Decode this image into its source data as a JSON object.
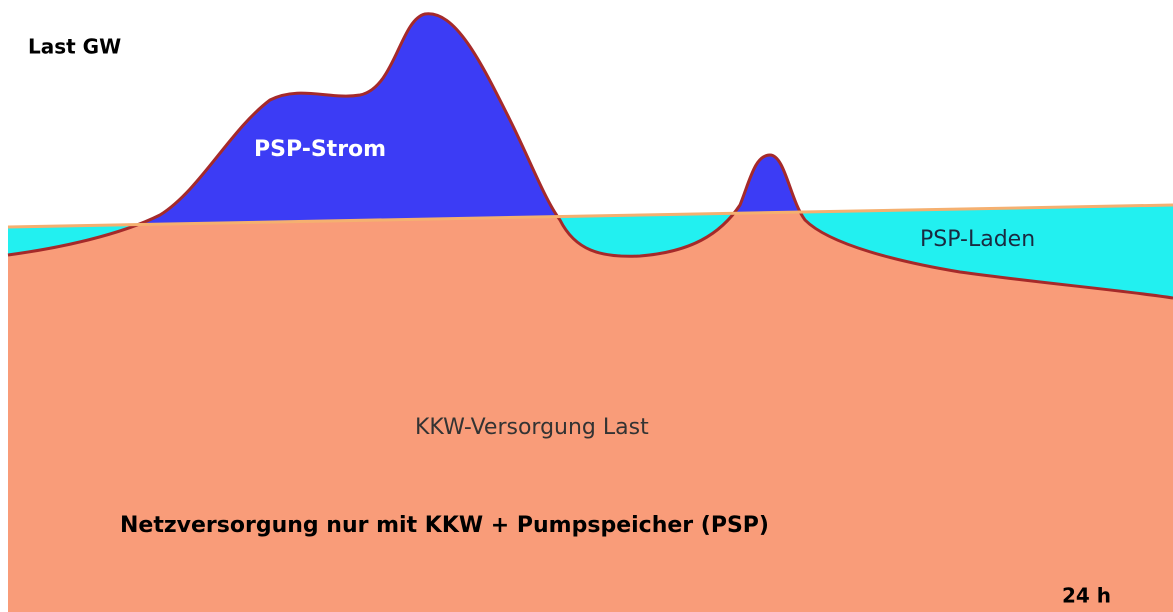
{
  "title": "Netzversorgung nur mit KKW + Pumpspeicher (PSP)",
  "axis_labels": {
    "y": "Last GW",
    "x": "24 h"
  },
  "regions": [
    {
      "label": "PSP-Strom"
    },
    {
      "label": "PSP-Laden"
    },
    {
      "label": "KKW-Versorgung Last"
    }
  ]
}
